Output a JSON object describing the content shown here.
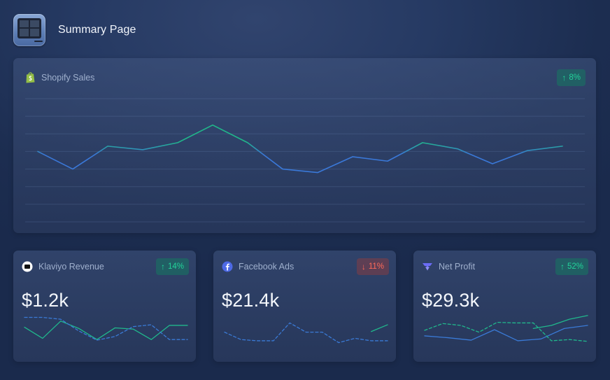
{
  "header": {
    "title": "Summary Page",
    "icon": "dashboard-app-icon"
  },
  "main_chart": {
    "label": "Shopify Sales",
    "icon": "shopify-icon",
    "badge": {
      "direction": "up",
      "arrow": "↑",
      "text": "8%"
    },
    "chart_data": {
      "type": "line",
      "grid": true,
      "ylim": [
        0,
        7
      ],
      "series": [
        {
          "values": [
            4.0,
            3.0,
            4.3,
            4.1,
            4.5,
            5.5,
            4.5,
            3.0,
            2.8,
            3.7,
            3.45,
            4.5,
            4.15,
            3.3,
            4.05,
            4.3
          ]
        }
      ],
      "colors": {
        "up": "#20b78a",
        "down": "#3a78d8"
      }
    }
  },
  "cards": [
    {
      "label": "Klaviyo Revenue",
      "icon": "klaviyo-icon",
      "value": "$1.2k",
      "badge": {
        "direction": "up",
        "arrow": "↑",
        "text": "14%"
      },
      "chart_data": {
        "type": "line",
        "ylim": [
          0,
          5
        ],
        "series": [
          {
            "style": "solid",
            "color": "#20b88c",
            "values": [
              3.0,
              1.2,
              4.0,
              2.8,
              1.0,
              2.9,
              2.7,
              1.0,
              3.3,
              3.3
            ]
          },
          {
            "style": "dashed",
            "color": "#3a7ad6",
            "values": [
              4.6,
              4.6,
              4.3,
              2.4,
              0.9,
              1.5,
              3.1,
              3.4,
              1.0,
              1.0
            ]
          }
        ]
      }
    },
    {
      "label": "Facebook Ads",
      "icon": "facebook-icon",
      "value": "$21.4k",
      "badge": {
        "direction": "down",
        "arrow": "↓",
        "text": "11%"
      },
      "chart_data": {
        "type": "line",
        "ylim": [
          0,
          5
        ],
        "series": [
          {
            "style": "dashed",
            "color": "#3a7ad6",
            "values": [
              2.2,
              1.0,
              0.8,
              0.8,
              3.7,
              2.2,
              2.2,
              0.5,
              1.2,
              0.8,
              0.8
            ]
          },
          {
            "style": "solid",
            "color": "#20b88c",
            "values": [
              null,
              null,
              null,
              null,
              null,
              null,
              null,
              null,
              null,
              2.3,
              3.4
            ]
          }
        ]
      }
    },
    {
      "label": "Net Profit",
      "icon": "triple-whale-icon",
      "value": "$29.3k",
      "badge": {
        "direction": "up",
        "arrow": "↑",
        "text": "52%"
      },
      "chart_data": {
        "type": "line",
        "ylim": [
          0,
          5
        ],
        "series": [
          {
            "style": "solid",
            "color": "#3a7ad6",
            "values": [
              1.6,
              1.3,
              0.9,
              2.6,
              0.8,
              1.1,
              2.8,
              3.3
            ]
          },
          {
            "style": "solid",
            "color": "#20b88c",
            "values": [
              null,
              null,
              null,
              null,
              null,
              null,
              2.8,
              3.3,
              4.3,
              4.9
            ]
          },
          {
            "style": "dashed",
            "color": "#20b88c",
            "values": [
              2.5,
              3.6,
              3.3,
              2.2,
              3.8,
              3.7,
              3.7,
              0.8,
              1.0,
              0.7
            ]
          }
        ]
      }
    }
  ]
}
